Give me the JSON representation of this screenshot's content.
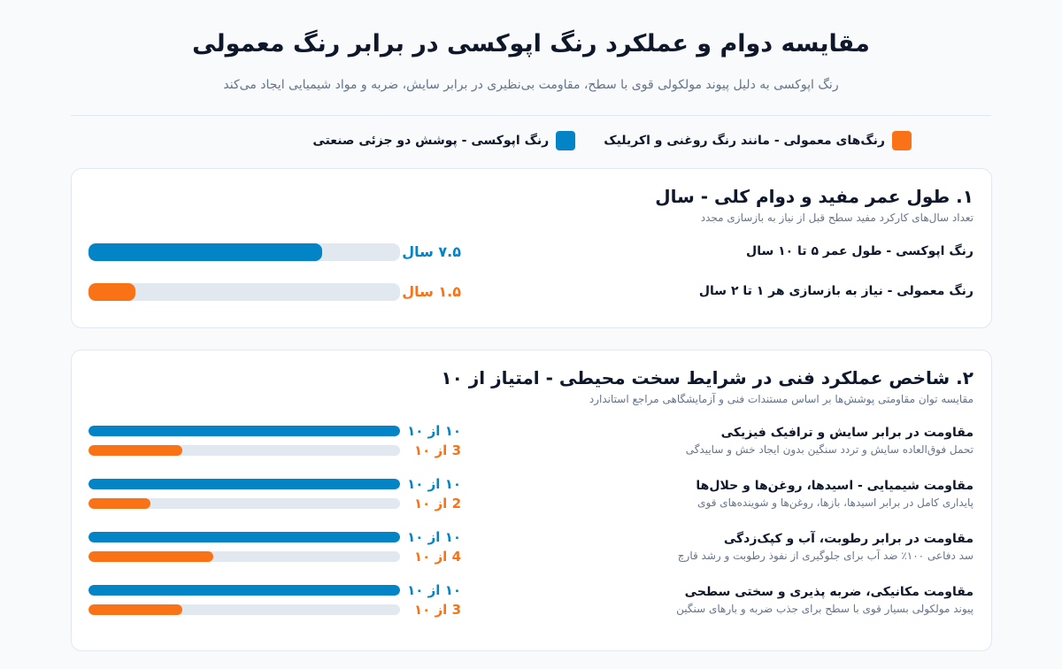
{
  "header": {
    "title": "مقایسه دوام و عملکرد رنگ اپوکسی در برابر رنگ معمولی",
    "subtitle": "رنگ اپوکسی به دلیل پیوند مولکولی قوی با سطح، مقاومت بی‌نظیری در برابر سایش، ضربه و مواد شیمیایی ایجاد می‌کند"
  },
  "colors": {
    "epoxy": "#0284c7",
    "regular": "#f97316",
    "track": "#e2e8f0"
  },
  "legend": {
    "epoxy_label": "رنگ اپوکسی - پوشش دو جزئی صنعتی",
    "regular_label": "رنگ‌های معمولی - مانند رنگ روغنی و اکریلیک"
  },
  "chart_data": [
    {
      "type": "bar",
      "title": "۱. طول عمر مفید و دوام کلی - سال",
      "subtitle": "تعداد سال‌های کارکرد مفید سطح قبل از نیاز به بازسازی مجدد",
      "xlim": [
        0,
        10
      ],
      "rows": [
        {
          "label": "رنگ اپوکسی - طول عمر ۵ تا ۱۰ سال",
          "series": "epoxy",
          "value": 7.5,
          "value_label": "۷.۵ سال"
        },
        {
          "label": "رنگ معمولی - نیاز به بازسازی هر ۱ تا ۲ سال",
          "series": "regular",
          "value": 1.5,
          "value_label": "۱.۵ سال"
        }
      ]
    },
    {
      "type": "bar",
      "title": "۲. شاخص عملکرد فنی در شرایط سخت محیطی - امتیاز از ۱۰",
      "subtitle": "مقایسه توان مقاومتی پوشش‌ها بر اساس مستندات فنی و آزمایشگاهی مراجع استاندارد",
      "xlim": [
        0,
        10
      ],
      "categories": [
        {
          "label": "مقاومت در برابر سایش و ترافیک فیزیکی",
          "desc": "تحمل فوق‌العاده سایش و تردد سنگین بدون ایجاد خش و ساییدگی",
          "epoxy": 10,
          "epoxy_label": "۱۰ از ۱۰",
          "regular": 3,
          "regular_label": "3 از ۱۰"
        },
        {
          "label": "مقاومت شیمیایی - اسیدها، روغن‌ها و حلال‌ها",
          "desc": "پایداری کامل در برابر اسیدها، بازها، روغن‌ها و شوینده‌های قوی",
          "epoxy": 10,
          "epoxy_label": "۱۰ از ۱۰",
          "regular": 2,
          "regular_label": "2 از ۱۰"
        },
        {
          "label": "مقاومت در برابر رطوبت، آب و کپک‌زدگی",
          "desc": "سد دفاعی ۱۰۰٪ ضد آب برای جلوگیری از نفوذ رطوبت و رشد قارچ",
          "epoxy": 10,
          "epoxy_label": "۱۰ از ۱۰",
          "regular": 4,
          "regular_label": "4 از ۱۰"
        },
        {
          "label": "مقاومت مکانیکی، ضربه پذیری و سختی سطحی",
          "desc": "پیوند مولکولی بسیار قوی با سطح برای جذب ضربه و بارهای سنگین",
          "epoxy": 10,
          "epoxy_label": "۱۰ از ۱۰",
          "regular": 3,
          "regular_label": "3 از ۱۰"
        }
      ]
    }
  ]
}
